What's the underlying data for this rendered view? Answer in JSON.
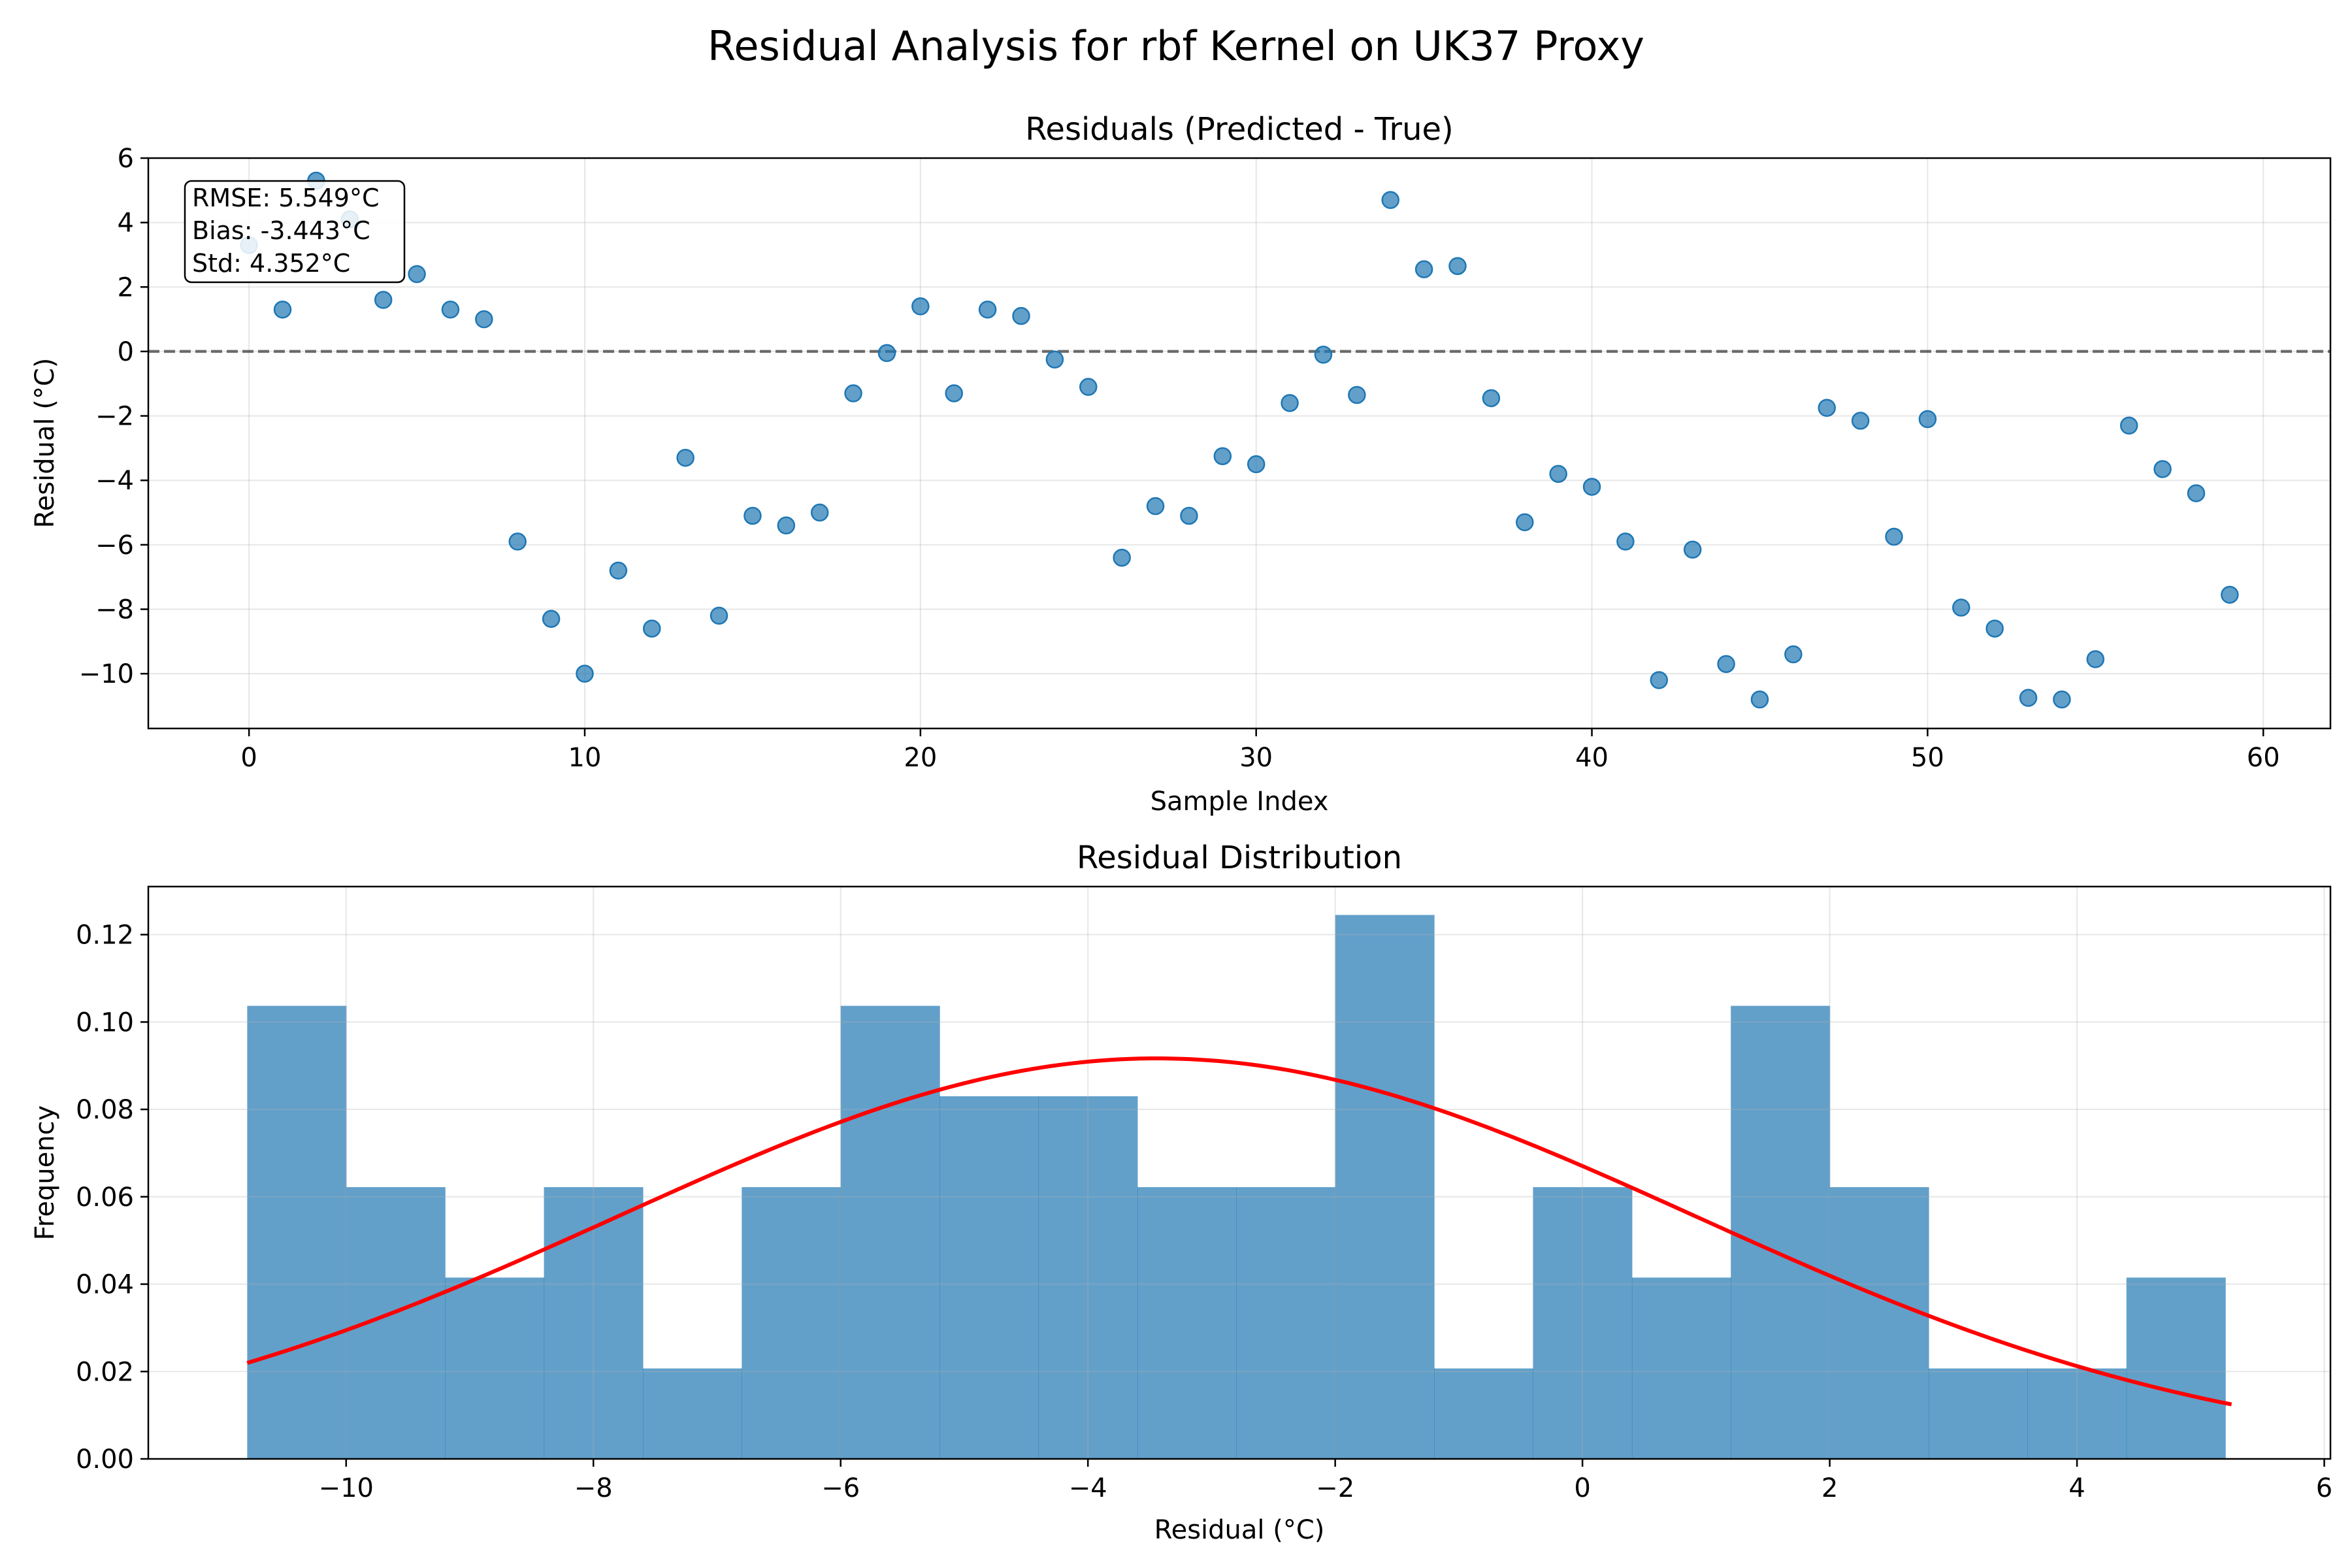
{
  "figure_title": "Residual Analysis for rbf Kernel on UK37 Proxy",
  "colors": {
    "scatter": "#1f77b4",
    "bars": "#1f77b4",
    "normal_curve": "#ff0000",
    "zero_line": "#000000",
    "grid": "#b0b0b0"
  },
  "chart_data": [
    {
      "type": "scatter",
      "title": "Residuals (Predicted - True)",
      "xlabel": "Sample Index",
      "ylabel": "Residual (°C)",
      "xlim": [
        -3,
        62
      ],
      "ylim": [
        -11.7,
        6.0
      ],
      "xticks": [
        0,
        10,
        20,
        30,
        40,
        50,
        60
      ],
      "yticks": [
        -10,
        -8,
        -6,
        -4,
        -2,
        0,
        2,
        4,
        6
      ],
      "grid": true,
      "reference_line": {
        "y": 0,
        "style": "dashed"
      },
      "stats_box": {
        "placement": "top-left",
        "lines": [
          "RMSE: 5.549°C",
          "Bias: -3.443°C",
          "Std: 4.352°C"
        ]
      },
      "x": [
        0,
        1,
        2,
        3,
        4,
        5,
        6,
        7,
        8,
        9,
        10,
        11,
        12,
        13,
        14,
        15,
        16,
        17,
        18,
        19,
        20,
        21,
        22,
        23,
        24,
        25,
        26,
        27,
        28,
        29,
        30,
        31,
        32,
        33,
        34,
        35,
        36,
        37,
        38,
        39,
        40,
        41,
        42,
        43,
        44,
        45,
        46,
        47,
        48,
        49,
        50,
        51,
        52,
        53,
        54,
        55,
        56,
        57,
        58,
        59
      ],
      "y": [
        3.3,
        1.3,
        5.3,
        4.1,
        1.6,
        2.4,
        1.3,
        1.0,
        -5.9,
        -8.3,
        -10.0,
        -6.8,
        -8.6,
        -3.3,
        -8.2,
        -5.1,
        -5.4,
        -5.0,
        -1.3,
        -0.05,
        1.4,
        -1.3,
        1.3,
        1.1,
        -0.25,
        -1.1,
        -6.4,
        -4.8,
        -5.1,
        -3.25,
        -3.5,
        -1.6,
        -0.1,
        -1.35,
        4.7,
        2.55,
        2.65,
        -1.45,
        -5.3,
        -3.8,
        -4.2,
        -5.9,
        -10.2,
        -6.15,
        -9.7,
        -10.8,
        -9.4,
        -1.75,
        -2.15,
        -5.75,
        -2.1,
        -7.95,
        -8.6,
        -10.75,
        -10.8,
        -9.55,
        -2.3,
        -3.65,
        -4.4,
        -7.55
      ]
    },
    {
      "type": "bar",
      "title": "Residual Distribution",
      "xlabel": "Residual (°C)",
      "ylabel": "Frequency",
      "xlim": [
        -11.6,
        6.05
      ],
      "ylim": [
        0,
        0.131
      ],
      "xticks": [
        -10,
        -8,
        -6,
        -4,
        -2,
        0,
        2,
        4,
        6
      ],
      "yticks": [
        0.0,
        0.02,
        0.04,
        0.06,
        0.08,
        0.1,
        0.12
      ],
      "grid": true,
      "bin_start": -10.8,
      "bin_width": 0.8,
      "values": [
        0.1037,
        0.0622,
        0.0415,
        0.0622,
        0.0207,
        0.0622,
        0.1037,
        0.083,
        0.083,
        0.0622,
        0.0622,
        0.1245,
        0.0207,
        0.0622,
        0.0415,
        0.1037,
        0.0622,
        0.0207,
        0.0207,
        0.0415
      ],
      "curve": {
        "type": "normal_pdf",
        "mean": -3.443,
        "std": 4.352,
        "x_range": [
          -10.8,
          5.25
        ]
      }
    }
  ]
}
